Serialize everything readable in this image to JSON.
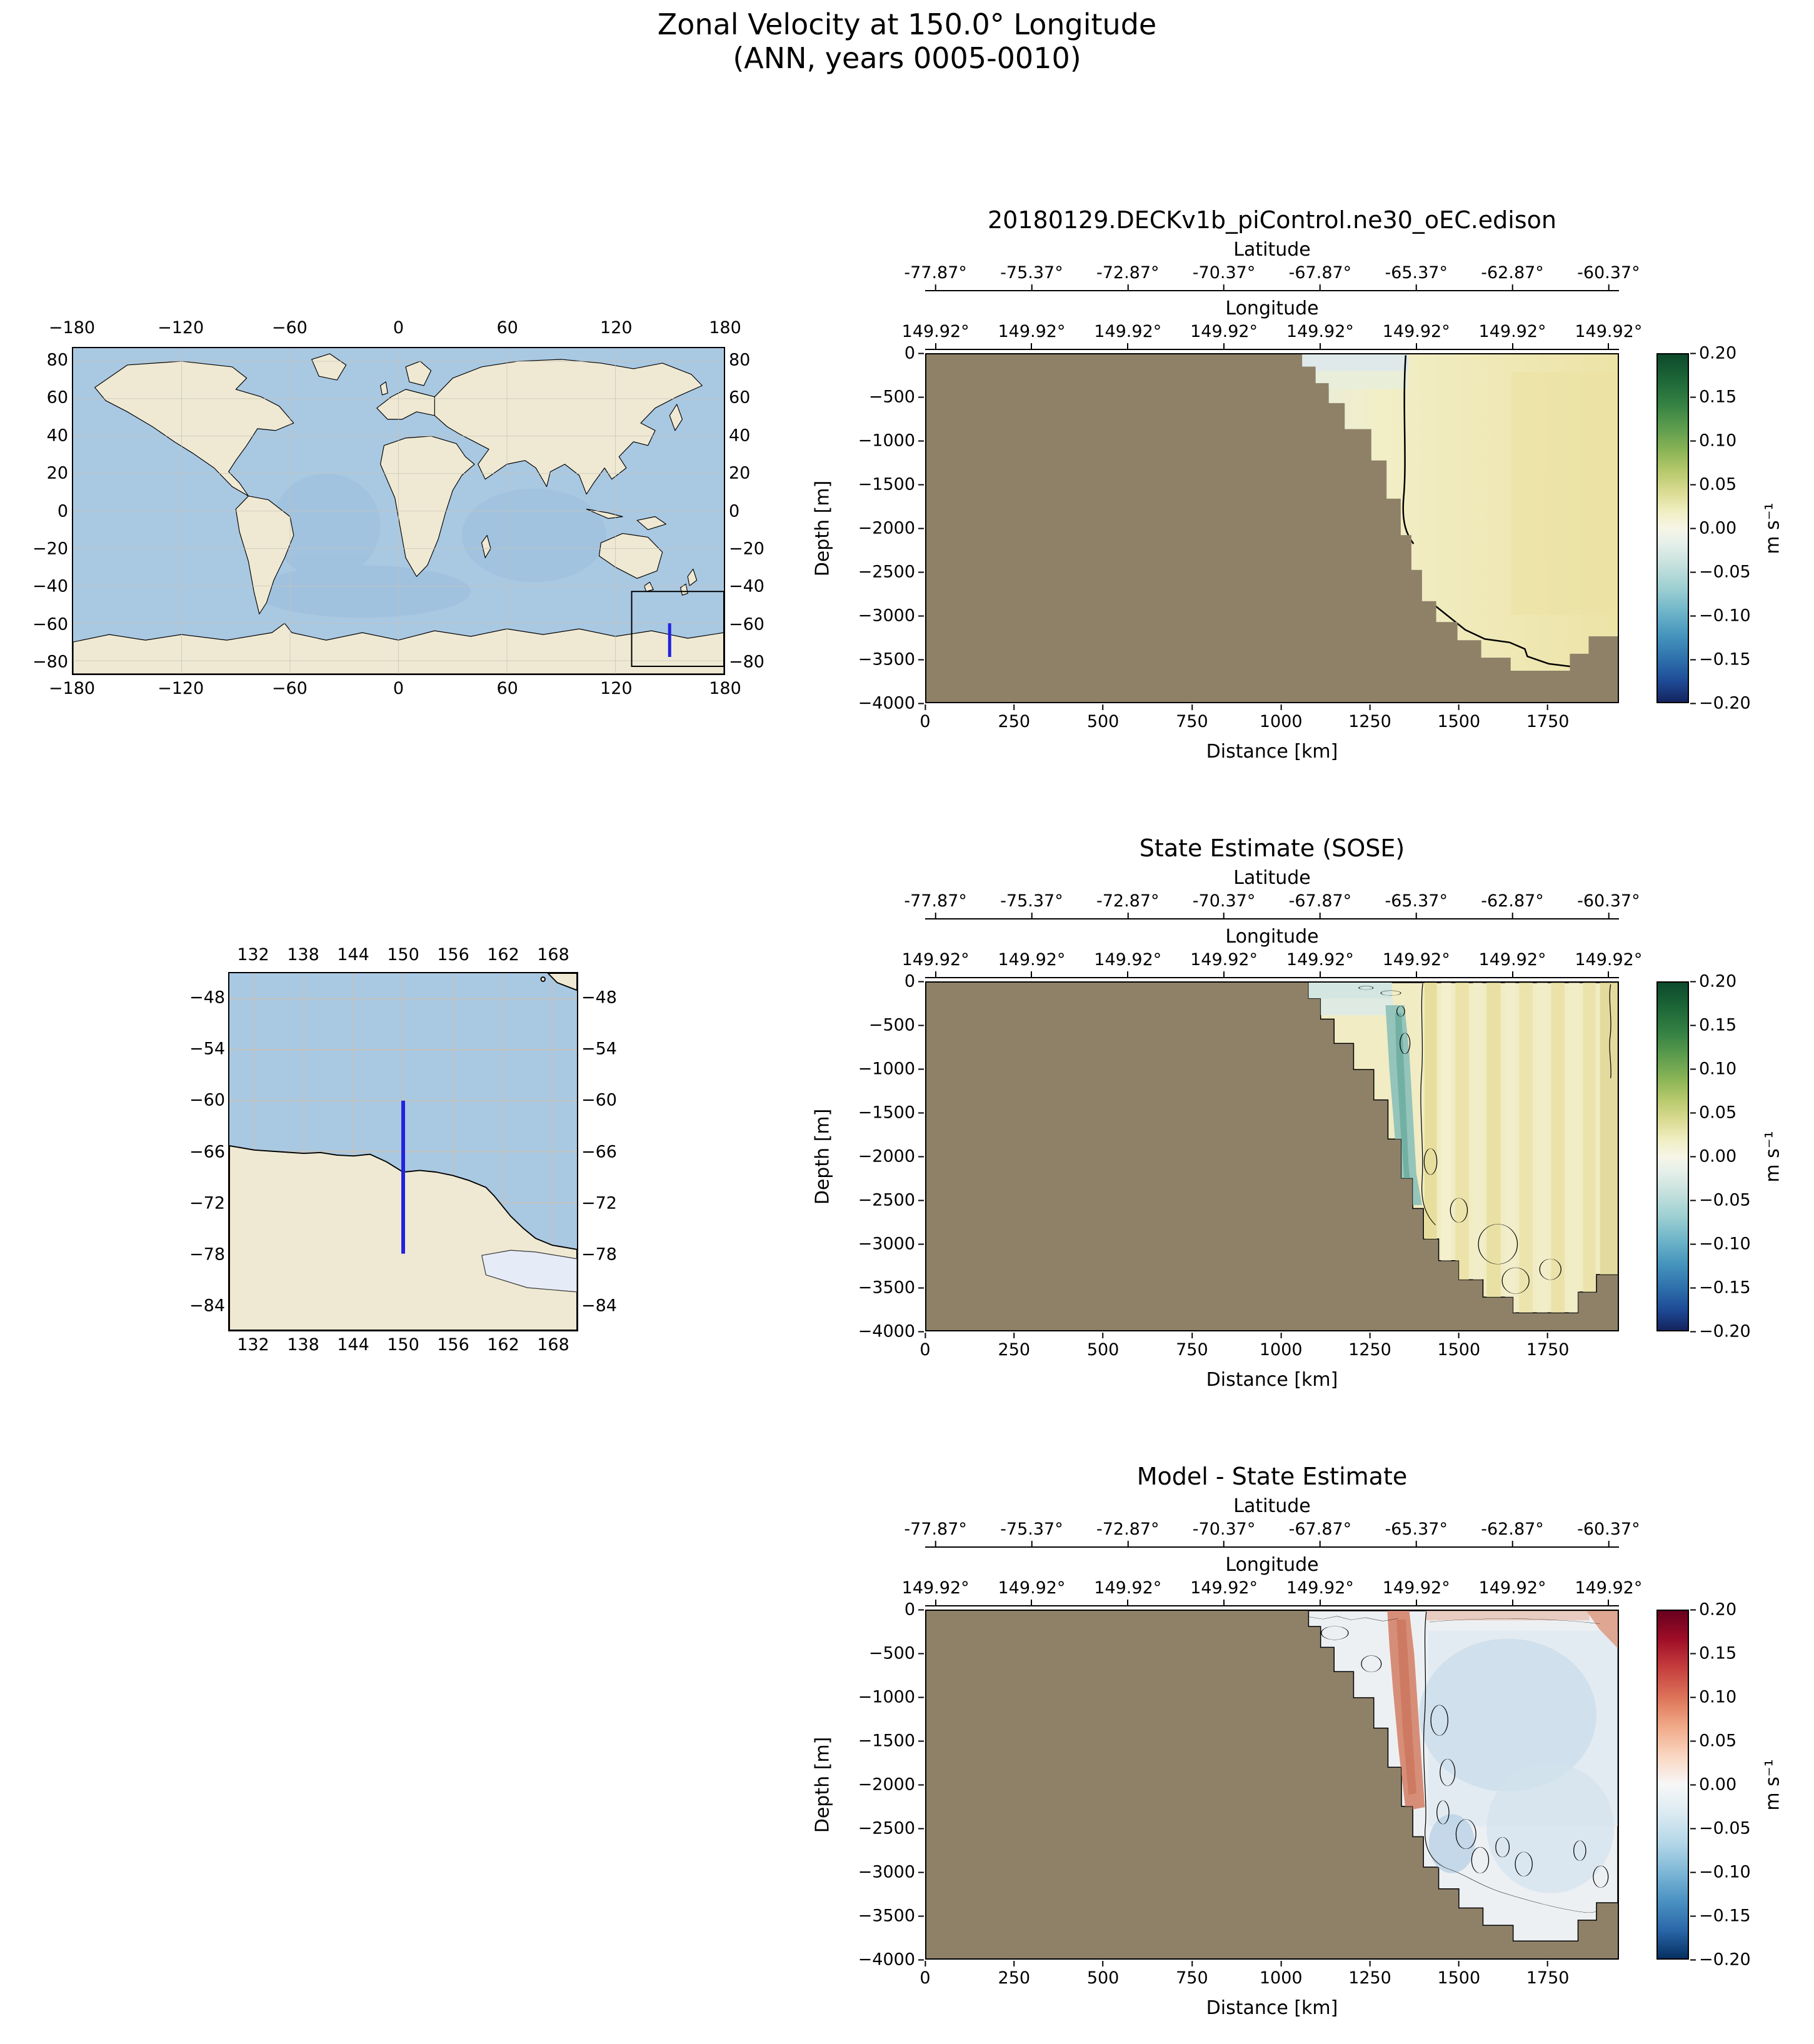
{
  "figure": {
    "title": "Zonal Velocity at 150.0° Longitude",
    "subtitle": "(ANN, years 0005-0010)"
  },
  "world_map": {
    "x_ticks": [
      "−180",
      "−120",
      "−60",
      "0",
      "60",
      "120",
      "180"
    ],
    "y_ticks": [
      "80",
      "60",
      "40",
      "20",
      "0",
      "−20",
      "−40",
      "−60",
      "−80"
    ]
  },
  "zoom_map": {
    "x_ticks": [
      "132",
      "138",
      "144",
      "150",
      "156",
      "162",
      "168"
    ],
    "y_ticks": [
      "−48",
      "−54",
      "−60",
      "−66",
      "−72",
      "−78",
      "−84"
    ]
  },
  "panels": [
    {
      "title": "20180129.DECKv1b_piControl.ne30_oEC.edison",
      "lat_axis_label": "Latitude",
      "lat_ticks": [
        "-77.87°",
        "-75.37°",
        "-72.87°",
        "-70.37°",
        "-67.87°",
        "-65.37°",
        "-62.87°",
        "-60.37°"
      ],
      "lon_axis_label": "Longitude",
      "lon_ticks": [
        "149.92°",
        "149.92°",
        "149.92°",
        "149.92°",
        "149.92°",
        "149.92°",
        "149.92°",
        "149.92°"
      ],
      "depth_label": "Depth [m]",
      "depth_ticks": [
        "0",
        "−500",
        "−1000",
        "−1500",
        "−2000",
        "−2500",
        "−3000",
        "−3500",
        "−4000"
      ],
      "distance_label": "Distance [km]",
      "distance_ticks": [
        "0",
        "250",
        "500",
        "750",
        "1000",
        "1250",
        "1500",
        "1750"
      ],
      "colorbar_ticks": [
        "0.20",
        "0.15",
        "0.10",
        "0.05",
        "0.00",
        "−0.05",
        "−0.10",
        "−0.15",
        "−0.20"
      ],
      "colorbar_label": "m s⁻¹"
    },
    {
      "title": "State Estimate (SOSE)",
      "lat_axis_label": "Latitude",
      "lat_ticks": [
        "-77.87°",
        "-75.37°",
        "-72.87°",
        "-70.37°",
        "-67.87°",
        "-65.37°",
        "-62.87°",
        "-60.37°"
      ],
      "lon_axis_label": "Longitude",
      "lon_ticks": [
        "149.92°",
        "149.92°",
        "149.92°",
        "149.92°",
        "149.92°",
        "149.92°",
        "149.92°",
        "149.92°"
      ],
      "depth_label": "Depth [m]",
      "depth_ticks": [
        "0",
        "−500",
        "−1000",
        "−1500",
        "−2000",
        "−2500",
        "−3000",
        "−3500",
        "−4000"
      ],
      "distance_label": "Distance [km]",
      "distance_ticks": [
        "0",
        "250",
        "500",
        "750",
        "1000",
        "1250",
        "1500",
        "1750"
      ],
      "colorbar_ticks": [
        "0.20",
        "0.15",
        "0.10",
        "0.05",
        "0.00",
        "−0.05",
        "−0.10",
        "−0.15",
        "−0.20"
      ],
      "colorbar_label": "m s⁻¹"
    },
    {
      "title": "Model - State Estimate",
      "lat_axis_label": "Latitude",
      "lat_ticks": [
        "-77.87°",
        "-75.37°",
        "-72.87°",
        "-70.37°",
        "-67.87°",
        "-65.37°",
        "-62.87°",
        "-60.37°"
      ],
      "lon_axis_label": "Longitude",
      "lon_ticks": [
        "149.92°",
        "149.92°",
        "149.92°",
        "149.92°",
        "149.92°",
        "149.92°",
        "149.92°",
        "149.92°"
      ],
      "depth_label": "Depth [m]",
      "depth_ticks": [
        "0",
        "−500",
        "−1000",
        "−1500",
        "−2000",
        "−2500",
        "−3000",
        "−3500",
        "−4000"
      ],
      "distance_label": "Distance [km]",
      "distance_ticks": [
        "0",
        "250",
        "500",
        "750",
        "1000",
        "1250",
        "1500",
        "1750"
      ],
      "colorbar_ticks": [
        "0.20",
        "0.15",
        "0.10",
        "0.05",
        "0.00",
        "−0.05",
        "−0.10",
        "−0.15",
        "−0.20"
      ],
      "colorbar_label": "m s⁻¹"
    }
  ],
  "chart_data": [
    {
      "type": "map",
      "name": "global-overview-map",
      "xlim": [
        -180,
        180
      ],
      "ylim": [
        -87,
        87
      ],
      "x_ticks": [
        -180,
        -120,
        -60,
        0,
        60,
        120,
        180
      ],
      "y_ticks": [
        80,
        60,
        40,
        20,
        0,
        -20,
        -40,
        -60,
        -80
      ],
      "grid": true,
      "inset_box": {
        "lon_min": 129,
        "lon_max": 180,
        "lat_min": -85,
        "lat_max": -43
      },
      "transect_line": {
        "lon": 150,
        "lat_min": -78,
        "lat_max": -60,
        "color": "#2222e0"
      }
    },
    {
      "type": "map",
      "name": "regional-inset-map",
      "xlim": [
        129,
        171
      ],
      "ylim": [
        -87,
        -45
      ],
      "x_ticks": [
        132,
        138,
        144,
        150,
        156,
        162,
        168
      ],
      "y_ticks": [
        -48,
        -54,
        -60,
        -66,
        -72,
        -78,
        -84
      ],
      "grid": true,
      "transect_line": {
        "lon": 150,
        "lat_min": -78,
        "lat_max": -60,
        "color": "#2222e0"
      }
    },
    {
      "type": "heatmap",
      "title": "20180129.DECKv1b_piControl.ne30_oEC.edison",
      "xlabel": "Distance [km]",
      "ylabel": "Depth [m]",
      "xlim": [
        0,
        1950
      ],
      "ylim": [
        -4000,
        0
      ],
      "x_ticks": [
        0,
        250,
        500,
        750,
        1000,
        1250,
        1500,
        1750
      ],
      "y_ticks": [
        0,
        -500,
        -1000,
        -1500,
        -2000,
        -2500,
        -3000,
        -3500,
        -4000
      ],
      "top_axis_latitude_ticks": [
        -77.87,
        -75.37,
        -72.87,
        -70.37,
        -67.87,
        -65.37,
        -62.87,
        -60.37
      ],
      "top_axis_longitude_ticks": [
        149.92,
        149.92,
        149.92,
        149.92,
        149.92,
        149.92,
        149.92,
        149.92
      ],
      "colorbar": {
        "vmin": -0.2,
        "vmax": 0.2,
        "tick_step": 0.05,
        "units": "m s⁻¹",
        "colormap": "blue-teal-white-yellow-green diverging"
      },
      "land_mask_color": "#8e8168",
      "field_summary": "Land/seafloor mask covers distance 0–1050 km (Antarctic continent); stepped shelf break 1050–1450 km; deep basin 3200–3700 m beyond. Ocean interior mostly weak eastward flow 0.00 to +0.05 m/s (pale yellow); slightly negative values (-0.02) near surface at 1050–1350 km; zero contour near 1360 km from surface to ~2150 m depth and along the basin floor near 3300–3600 m."
    },
    {
      "type": "heatmap",
      "title": "State Estimate (SOSE)",
      "xlabel": "Distance [km]",
      "ylabel": "Depth [m]",
      "xlim": [
        0,
        1950
      ],
      "ylim": [
        -4000,
        0
      ],
      "x_ticks": [
        0,
        250,
        500,
        750,
        1000,
        1250,
        1500,
        1750
      ],
      "y_ticks": [
        0,
        -500,
        -1000,
        -1500,
        -2000,
        -2500,
        -3000,
        -3500,
        -4000
      ],
      "top_axis_latitude_ticks": [
        -77.87,
        -75.37,
        -72.87,
        -70.37,
        -67.87,
        -65.37,
        -62.87,
        -60.37
      ],
      "top_axis_longitude_ticks": [
        149.92,
        149.92,
        149.92,
        149.92,
        149.92,
        149.92,
        149.92,
        149.92
      ],
      "colorbar": {
        "vmin": -0.2,
        "vmax": 0.2,
        "tick_step": 0.05,
        "units": "m s⁻¹",
        "colormap": "blue-teal-white-yellow-green diverging"
      },
      "land_mask_color": "#8e8168",
      "field_summary": "Similar bathymetry; columnar bands of +0.00 to +0.08 m/s (yellow stripes) east of 1400 km; westward band (-0.05 to -0.10 m/s, teal) hugging the continental slope near 1300–1400 km from ~250 m to ~2500 m; many closed zero contours in the deep basin."
    },
    {
      "type": "heatmap",
      "title": "Model - State Estimate",
      "xlabel": "Distance [km]",
      "ylabel": "Depth [m]",
      "xlim": [
        0,
        1950
      ],
      "ylim": [
        -4000,
        0
      ],
      "x_ticks": [
        0,
        250,
        500,
        750,
        1000,
        1250,
        1500,
        1750
      ],
      "y_ticks": [
        0,
        -500,
        -1000,
        -1500,
        -2000,
        -2500,
        -3000,
        -3500,
        -4000
      ],
      "top_axis_latitude_ticks": [
        -77.87,
        -75.37,
        -72.87,
        -70.37,
        -67.87,
        -65.37,
        -62.87,
        -60.37
      ],
      "top_axis_longitude_ticks": [
        149.92,
        149.92,
        149.92,
        149.92,
        149.92,
        149.92,
        149.92,
        149.92
      ],
      "colorbar": {
        "vmin": -0.2,
        "vmax": 0.2,
        "tick_step": 0.05,
        "units": "m s⁻¹",
        "colormap": "red-white-blue diverging (RdBu)"
      },
      "land_mask_color": "#8e8168",
      "field_summary": "Difference mostly small and slightly negative (0 to -0.05 m/s, pale blue/white) in the basin interior; positive band (+0.05 to +0.10 m/s, red) along the continental slope at 1300–1400 km down to ~2300 m; reddish patch near the surface at the right edge; many small closed zero contours between 1400 and 1950 km."
    }
  ]
}
